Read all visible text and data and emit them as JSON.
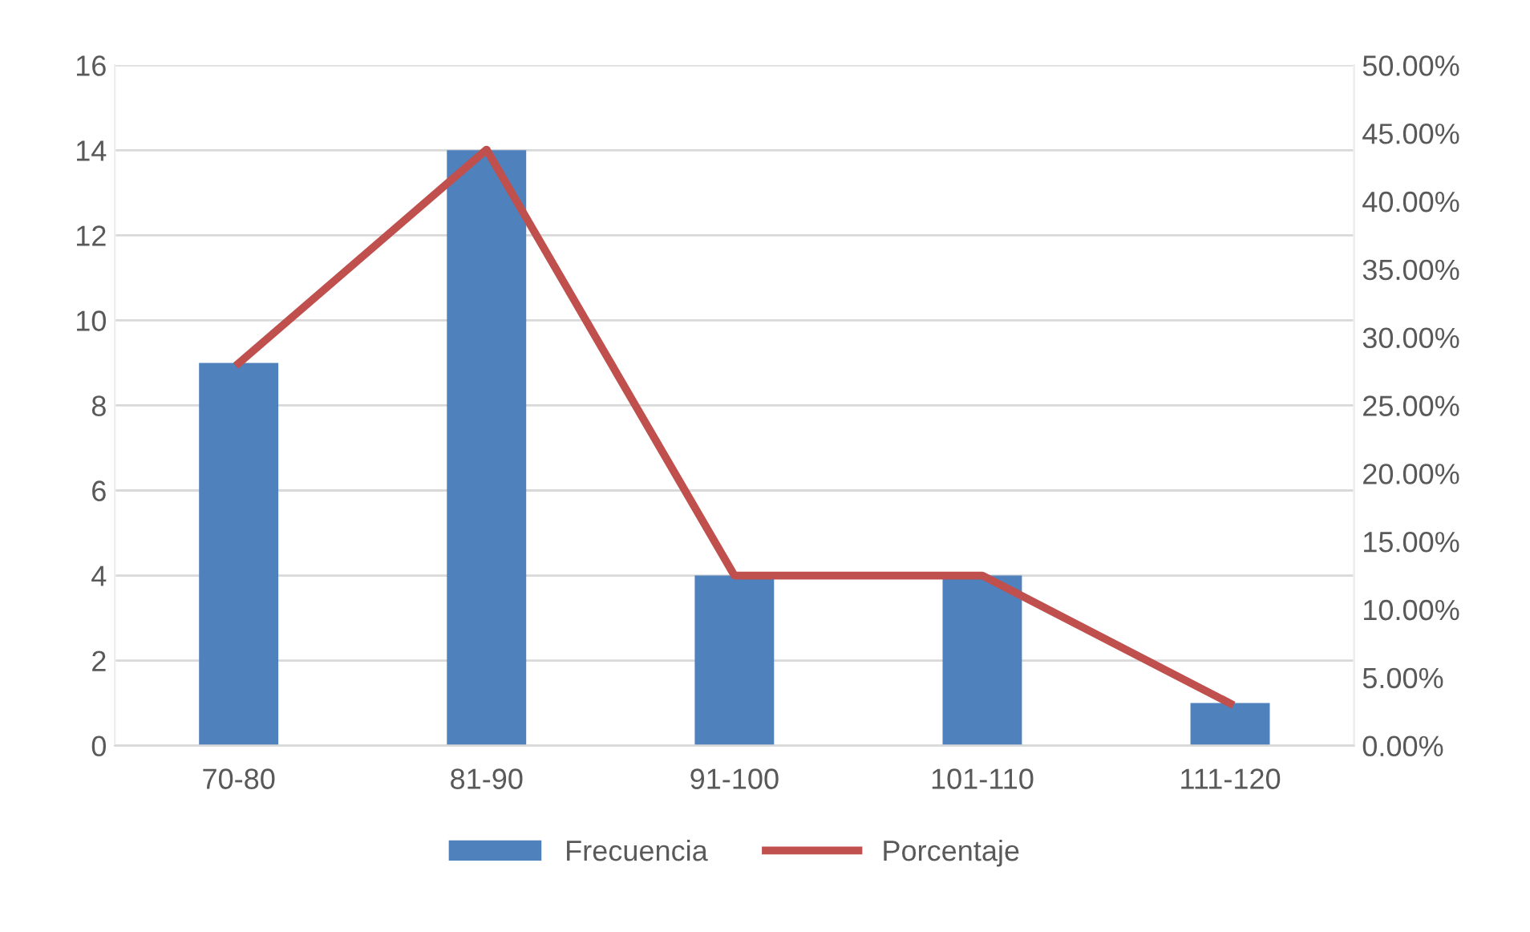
{
  "chart_data": {
    "type": "bar",
    "categories": [
      "70-80",
      "81-90",
      "91-100",
      "101-110",
      "111-120"
    ],
    "series": [
      {
        "name": "Frecuencia",
        "color": "#4f81bd",
        "values": [
          9,
          14,
          4,
          4,
          1
        ]
      },
      {
        "name": "Porcentaje",
        "type": "line",
        "axis": "y2",
        "color": "#c0504d",
        "values": [
          28.1,
          43.8,
          12.5,
          12.5,
          3.1
        ]
      }
    ],
    "ylim": [
      0,
      16
    ],
    "yticks": [
      0,
      2,
      4,
      6,
      8,
      10,
      12,
      14,
      16
    ],
    "y2lim": [
      0,
      50
    ],
    "y2ticks": [
      {
        "value": 0,
        "label": "0.00%"
      },
      {
        "value": 5,
        "label": "5.00%"
      },
      {
        "value": 10,
        "label": "10.00%"
      },
      {
        "value": 15,
        "label": "15.00%"
      },
      {
        "value": 20,
        "label": "20.00%"
      },
      {
        "value": 25,
        "label": "25.00%"
      },
      {
        "value": 30,
        "label": "30.00%"
      },
      {
        "value": 35,
        "label": "35.00%"
      },
      {
        "value": 40,
        "label": "40.00%"
      },
      {
        "value": 45,
        "label": "45.00%"
      },
      {
        "value": 50,
        "label": "50.00%"
      }
    ],
    "grid": "y",
    "legend": "bottom",
    "marker": "none",
    "line_style": "solid"
  }
}
